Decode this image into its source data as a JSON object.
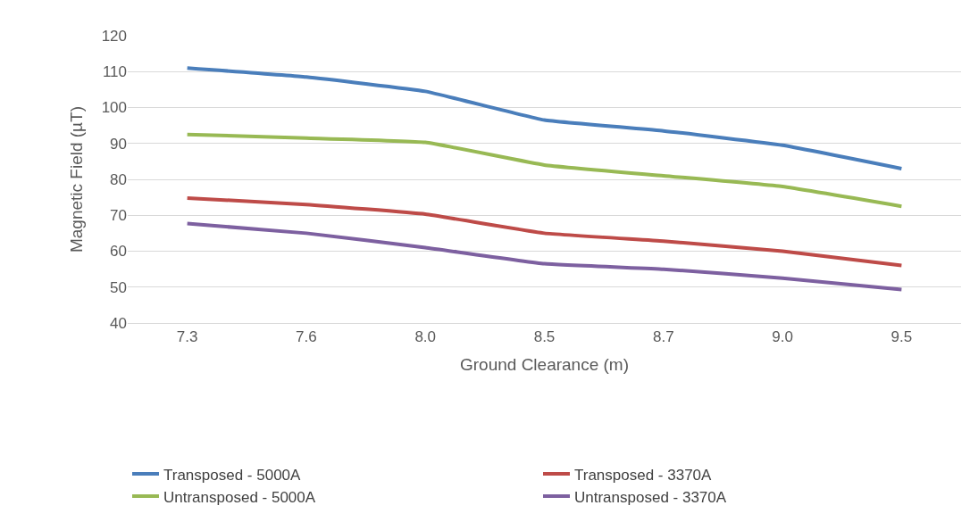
{
  "chart_data": {
    "type": "line",
    "xlabel": "Ground Clearance (m)",
    "ylabel": "Magnetic Field (µT)",
    "categories": [
      "7.3",
      "7.6",
      "8.0",
      "8.5",
      "8.7",
      "9.0",
      "9.5"
    ],
    "series": [
      {
        "name": "Transposed - 5000A",
        "color": "#4a7ebb",
        "values": [
          111,
          108.5,
          104.5,
          96.5,
          93.5,
          89.5,
          83
        ]
      },
      {
        "name": "Transposed - 3370A",
        "color": "#be4b48",
        "values": [
          74.8,
          73,
          70.3,
          65,
          62.8,
          60,
          56
        ]
      },
      {
        "name": "Untransposed - 5000A",
        "color": "#98b954",
        "values": [
          92.5,
          91.5,
          90.3,
          84,
          81,
          78,
          72.5
        ]
      },
      {
        "name": "Untransposed - 3370A",
        "color": "#7d60a0",
        "values": [
          67.7,
          65,
          61,
          56.5,
          55,
          52.5,
          49.3
        ]
      }
    ],
    "ylim": [
      40,
      120
    ],
    "yticks": [
      40,
      50,
      60,
      70,
      80,
      90,
      100,
      110,
      120
    ],
    "grid": "y",
    "legend": "bottom",
    "marker": "none",
    "line_style": "solid"
  }
}
